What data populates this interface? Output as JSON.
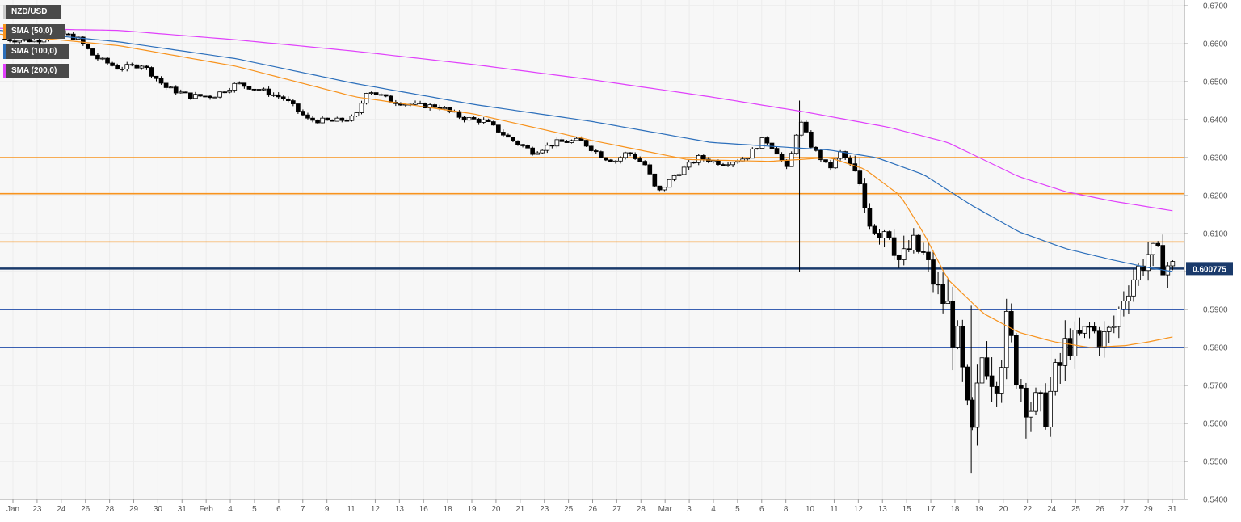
{
  "chart_data": {
    "type": "candlestick",
    "symbol": "NZD/USD",
    "legend": [
      {
        "label": "NZD/USD",
        "color": "#000000"
      },
      {
        "label": "SMA (50,0)",
        "color": "#f7931e"
      },
      {
        "label": "SMA (100,0)",
        "color": "#2c6fbb"
      },
      {
        "label": "SMA (200,0)",
        "color": "#e040fb"
      }
    ],
    "ylim": [
      0.54,
      0.6715
    ],
    "y_ticks": [
      "0.6700",
      "0.6600",
      "0.6500",
      "0.6400",
      "0.6300",
      "0.6200",
      "0.6100",
      "0.6000",
      "0.5900",
      "0.5800",
      "0.5700",
      "0.5600",
      "0.5500",
      "0.5400"
    ],
    "x_ticks": [
      "Jan",
      "23",
      "24",
      "26",
      "28",
      "29",
      "30",
      "31",
      "Feb",
      "4",
      "5",
      "6",
      "7",
      "9",
      "11",
      "12",
      "13",
      "16",
      "18",
      "19",
      "20",
      "21",
      "23",
      "25",
      "26",
      "27",
      "28",
      "Mar",
      "3",
      "4",
      "5",
      "6",
      "8",
      "10",
      "11",
      "12",
      "13",
      "15",
      "17",
      "18",
      "19",
      "20",
      "22",
      "24",
      "25",
      "26",
      "27",
      "29",
      "31"
    ],
    "current_price": {
      "label": "0.600775",
      "value": 0.600775
    },
    "horizontal_levels": [
      {
        "value": 0.63,
        "color": "#f7931e"
      },
      {
        "value": 0.6205,
        "color": "#f7931e"
      },
      {
        "value": 0.6078,
        "color": "#f7931e"
      },
      {
        "value": 0.59,
        "color": "#1f4aa8"
      },
      {
        "value": 0.58,
        "color": "#1f4aa8"
      }
    ],
    "close_path": [
      [
        0,
        0.6612
      ],
      [
        0.03,
        0.6608
      ],
      [
        0.05,
        0.6628
      ],
      [
        0.065,
        0.6615
      ],
      [
        0.08,
        0.6565
      ],
      [
        0.1,
        0.6535
      ],
      [
        0.12,
        0.6545
      ],
      [
        0.14,
        0.6485
      ],
      [
        0.16,
        0.6462
      ],
      [
        0.18,
        0.6462
      ],
      [
        0.2,
        0.6495
      ],
      [
        0.22,
        0.6478
      ],
      [
        0.24,
        0.6455
      ],
      [
        0.26,
        0.64
      ],
      [
        0.28,
        0.6395
      ],
      [
        0.3,
        0.6405
      ],
      [
        0.31,
        0.648
      ],
      [
        0.33,
        0.645
      ],
      [
        0.35,
        0.6438
      ],
      [
        0.37,
        0.6435
      ],
      [
        0.39,
        0.6405
      ],
      [
        0.41,
        0.6395
      ],
      [
        0.43,
        0.635
      ],
      [
        0.45,
        0.6315
      ],
      [
        0.47,
        0.634
      ],
      [
        0.49,
        0.6345
      ],
      [
        0.51,
        0.63
      ],
      [
        0.52,
        0.6292
      ],
      [
        0.53,
        0.6315
      ],
      [
        0.545,
        0.628
      ],
      [
        0.555,
        0.6205
      ],
      [
        0.57,
        0.6255
      ],
      [
        0.59,
        0.63
      ],
      [
        0.61,
        0.6285
      ],
      [
        0.63,
        0.63
      ],
      [
        0.645,
        0.635
      ],
      [
        0.655,
        0.632
      ],
      [
        0.665,
        0.6265
      ],
      [
        0.675,
        0.64
      ],
      [
        0.685,
        0.633
      ],
      [
        0.7,
        0.627
      ],
      [
        0.71,
        0.6315
      ],
      [
        0.72,
        0.627
      ],
      [
        0.73,
        0.617
      ],
      [
        0.74,
        0.611
      ],
      [
        0.75,
        0.612
      ],
      [
        0.76,
        0.602
      ],
      [
        0.77,
        0.607
      ],
      [
        0.78,
        0.604
      ],
      [
        0.79,
        0.596
      ],
      [
        0.8,
        0.59
      ],
      [
        0.81,
        0.578
      ],
      [
        0.82,
        0.553
      ],
      [
        0.83,
        0.58
      ],
      [
        0.84,
        0.572
      ],
      [
        0.85,
        0.585
      ],
      [
        0.86,
        0.572
      ],
      [
        0.87,
        0.565
      ],
      [
        0.88,
        0.562
      ],
      [
        0.89,
        0.57
      ],
      [
        0.9,
        0.58
      ],
      [
        0.91,
        0.582
      ],
      [
        0.92,
        0.585
      ],
      [
        0.93,
        0.582
      ],
      [
        0.94,
        0.585
      ],
      [
        0.95,
        0.595
      ],
      [
        0.96,
        0.6
      ],
      [
        0.97,
        0.605
      ],
      [
        0.98,
        0.603
      ],
      [
        0.99,
        0.6008
      ]
    ],
    "sma50_path": [
      [
        0,
        0.6625
      ],
      [
        0.1,
        0.6595
      ],
      [
        0.2,
        0.654
      ],
      [
        0.3,
        0.646
      ],
      [
        0.4,
        0.6415
      ],
      [
        0.5,
        0.6345
      ],
      [
        0.58,
        0.6295
      ],
      [
        0.65,
        0.629
      ],
      [
        0.7,
        0.63
      ],
      [
        0.73,
        0.627
      ],
      [
        0.76,
        0.62
      ],
      [
        0.78,
        0.61
      ],
      [
        0.8,
        0.598
      ],
      [
        0.83,
        0.589
      ],
      [
        0.86,
        0.584
      ],
      [
        0.89,
        0.5815
      ],
      [
        0.92,
        0.58
      ],
      [
        0.95,
        0.5805
      ],
      [
        0.97,
        0.5815
      ],
      [
        0.99,
        0.5828
      ]
    ],
    "sma100_path": [
      [
        0,
        0.6635
      ],
      [
        0.1,
        0.6605
      ],
      [
        0.2,
        0.656
      ],
      [
        0.3,
        0.6495
      ],
      [
        0.4,
        0.644
      ],
      [
        0.5,
        0.6395
      ],
      [
        0.6,
        0.634
      ],
      [
        0.7,
        0.632
      ],
      [
        0.74,
        0.63
      ],
      [
        0.78,
        0.6255
      ],
      [
        0.82,
        0.6175
      ],
      [
        0.86,
        0.6105
      ],
      [
        0.9,
        0.606
      ],
      [
        0.94,
        0.603
      ],
      [
        0.97,
        0.601
      ],
      [
        0.99,
        0.6
      ]
    ],
    "sma200_path": [
      [
        0,
        0.664
      ],
      [
        0.1,
        0.6635
      ],
      [
        0.2,
        0.661
      ],
      [
        0.3,
        0.658
      ],
      [
        0.4,
        0.6545
      ],
      [
        0.5,
        0.6505
      ],
      [
        0.6,
        0.646
      ],
      [
        0.68,
        0.642
      ],
      [
        0.75,
        0.638
      ],
      [
        0.8,
        0.634
      ],
      [
        0.86,
        0.625
      ],
      [
        0.9,
        0.621
      ],
      [
        0.94,
        0.6185
      ],
      [
        0.99,
        0.616
      ]
    ]
  }
}
